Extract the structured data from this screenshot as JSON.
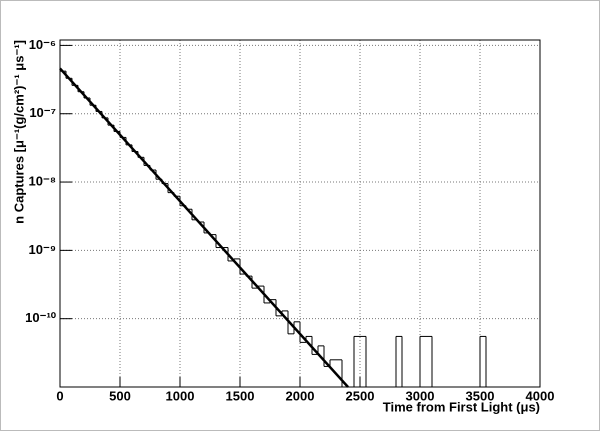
{
  "chart_data": {
    "type": "histogram",
    "x_label": "Time from First Light (μs)",
    "y_label": "n Captures [μ⁻¹(g/cm²)⁻¹ μs⁻¹]",
    "log_y": true,
    "grid": true,
    "color": "#000000",
    "xlim": [
      0,
      4000
    ],
    "ylim": [
      1e-11,
      1.2e-06
    ],
    "xticks": [
      0,
      500,
      1000,
      1500,
      2000,
      2500,
      3000,
      3500,
      4000
    ],
    "yticks": [
      {
        "value": 1e-10,
        "label": "10⁻¹⁰"
      },
      {
        "value": 1e-09,
        "label": "10⁻⁹"
      },
      {
        "value": 1e-08,
        "label": "10⁻⁸"
      },
      {
        "value": 1e-07,
        "label": "10⁻⁷"
      },
      {
        "value": 1e-06,
        "label": "10⁻⁶"
      }
    ],
    "bins": [
      0,
      50,
      100,
      150,
      200,
      250,
      300,
      350,
      400,
      450,
      500,
      550,
      600,
      650,
      700,
      750,
      800,
      850,
      900,
      950,
      1000,
      1050,
      1100,
      1150,
      1200,
      1250,
      1300,
      1350,
      1400,
      1450,
      1500,
      1550,
      1600,
      1650,
      1700,
      1750,
      1800,
      1850,
      1900,
      1950,
      2000,
      2050,
      2100,
      2150,
      2200,
      2250,
      2300,
      2350,
      2400,
      2450,
      2500,
      2550,
      2600,
      2650,
      2700,
      2750,
      2800,
      2850,
      2900,
      2950,
      3000,
      3050,
      3100,
      3150,
      3200,
      3250,
      3300,
      3350,
      3400,
      3450,
      3500,
      3550,
      3600,
      3650,
      3700,
      3750,
      3800,
      3850,
      3900,
      3950,
      4000
    ],
    "values": [
      4.2e-07,
      3.3e-07,
      2.6e-07,
      2.1e-07,
      1.7e-07,
      1.33e-07,
      1.08e-07,
      8.7e-08,
      6.8e-08,
      5.5e-08,
      4.5e-08,
      3.5e-08,
      2.8e-08,
      2.3e-08,
      1.75e-08,
      1.5e-08,
      1.1e-08,
      9.5e-09,
      7e-09,
      6.2e-09,
      4.5e-09,
      4e-09,
      2.8e-09,
      2.6e-09,
      1.8e-09,
      1.7e-09,
      1.1e-09,
      1.1e-09,
      7e-10,
      7.5e-10,
      4.5e-10,
      4.2e-10,
      2.8e-10,
      3e-10,
      1.7e-10,
      1.9e-10,
      1.1e-10,
      1.3e-10,
      6e-11,
      9e-11,
      4.5e-11,
      5.5e-11,
      3e-11,
      4e-11,
      2e-11,
      2.5e-11,
      2.5e-11,
      0,
      0,
      5.5e-11,
      5.5e-11,
      0,
      0,
      0,
      0,
      0,
      5.5e-11,
      0,
      0,
      0,
      5.5e-11,
      5.5e-11,
      0,
      0,
      0,
      0,
      0,
      0,
      0,
      0,
      5.5e-11,
      0,
      0,
      0,
      0,
      0,
      0,
      0,
      0,
      0
    ],
    "fit": {
      "x": [
        0,
        2400
      ],
      "values": [
        4.6e-07,
        1e-11
      ]
    }
  }
}
